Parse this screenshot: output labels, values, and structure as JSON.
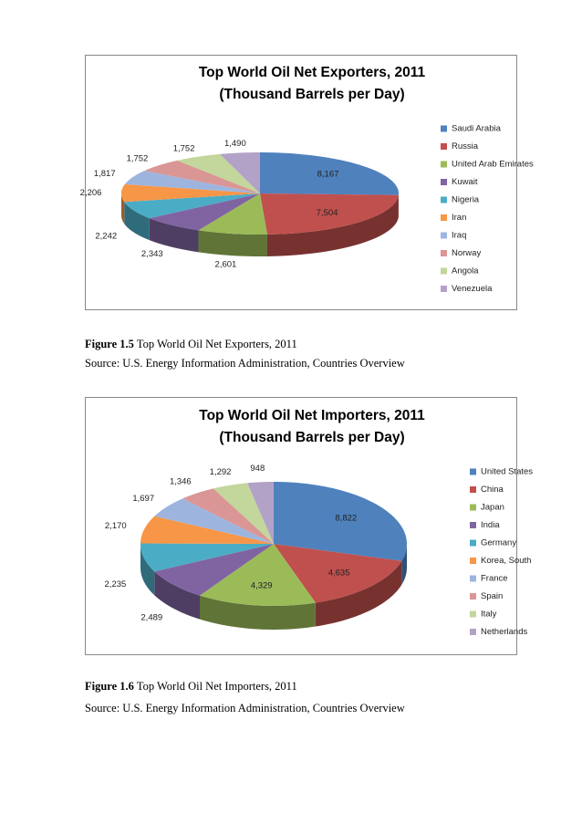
{
  "chart_data": [
    {
      "type": "pie3d",
      "title": "Top World Oil Net Exporters, 2011",
      "subtitle": "(Thousand Barrels per Day)",
      "categories": [
        "Saudi Arabia",
        "Russia",
        "United Arab Emirates",
        "Kuwait",
        "Nigeria",
        "Iran",
        "Iraq",
        "Norway",
        "Angola",
        "Venezuela"
      ],
      "values": [
        8167,
        7504,
        2601,
        2343,
        2242,
        2206,
        1817,
        1752,
        1752,
        1490
      ],
      "value_labels": [
        "8,167",
        "7,504",
        "2,601",
        "2,343",
        "2,242",
        "2,206",
        "1,817",
        "1,752",
        "1,752",
        "1,490"
      ],
      "colors": [
        "#4f81bd",
        "#c0504d",
        "#9bbb59",
        "#8064a2",
        "#4bacc6",
        "#f79646",
        "#9db5de",
        "#d99694",
        "#c3d69b",
        "#b3a2c7"
      ],
      "legend": "right"
    },
    {
      "type": "pie3d",
      "title": "Top World Oil Net Importers, 2011",
      "subtitle": "(Thousand Barrels per Day)",
      "categories": [
        "United States",
        "China",
        "Japan",
        "India",
        "Germany",
        "Korea, South",
        "France",
        "Spain",
        "Italy",
        "Netherlands"
      ],
      "values": [
        8822,
        4635,
        4329,
        2489,
        2235,
        2170,
        1697,
        1346,
        1292,
        948
      ],
      "value_labels": [
        "8,822",
        "4,635",
        "4,329",
        "2,489",
        "2,235",
        "2,170",
        "1,697",
        "1,346",
        "1,292",
        "948"
      ],
      "colors": [
        "#4f81bd",
        "#c0504d",
        "#9bbb59",
        "#8064a2",
        "#4bacc6",
        "#f79646",
        "#9db5de",
        "#d99694",
        "#c3d69b",
        "#b3a2c7"
      ],
      "legend": "right"
    }
  ],
  "figures": [
    {
      "number": "Figure 1.5",
      "caption": "Top World Oil Net Exporters, 2011",
      "source": "Source: U.S. Energy Information Administration, Countries Overview"
    },
    {
      "number": "Figure 1.6",
      "caption": "Top World Oil Net Importers, 2011",
      "source": "Source: U.S. Energy Information Administration, Countries Overview"
    }
  ]
}
